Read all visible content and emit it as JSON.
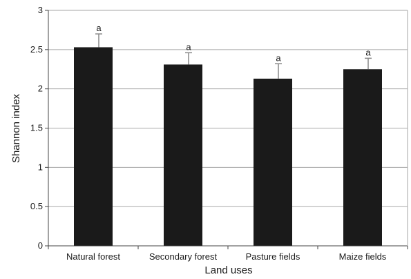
{
  "chart_data": {
    "type": "bar",
    "categories": [
      "Natural forest",
      "Secondary forest",
      "Pasture fields",
      "Maize fields"
    ],
    "values": [
      2.53,
      2.31,
      2.13,
      2.25
    ],
    "error_upper": [
      0.17,
      0.15,
      0.19,
      0.14
    ],
    "significance_labels": [
      "a",
      "a",
      "a",
      "a"
    ],
    "xlabel": "Land uses",
    "ylabel": "Shannon index",
    "ylim": [
      0,
      3
    ],
    "yticks": [
      0,
      0.5,
      1,
      1.5,
      2,
      2.5,
      3
    ],
    "ytick_labels": [
      "0",
      "0.5",
      "1",
      "1.5",
      "2",
      "2.5",
      "3"
    ],
    "grid": true,
    "bar_color": "#1a1a1a",
    "error_bar_color": "#888888",
    "grid_color": "#a6a6a6"
  }
}
